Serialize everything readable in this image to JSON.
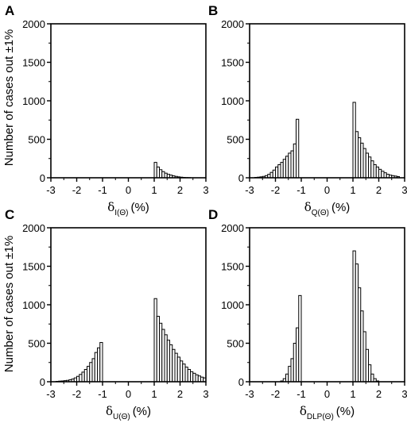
{
  "ylabel": "Number of cases out ±1%",
  "chart_data": [
    {
      "type": "bar",
      "panel_label": "A",
      "xlabel": {
        "symbol": "δ",
        "subscript": "I(Θ)",
        "unit": "(%)"
      },
      "xlim": [
        -3,
        3
      ],
      "ylim": [
        0,
        2000
      ],
      "xticks": [
        -3,
        -2,
        -1,
        0,
        1,
        2,
        3
      ],
      "yticks": [
        0,
        500,
        1000,
        1500,
        2000
      ],
      "bin_width": 0.1,
      "bins": [
        {
          "x": 1.0,
          "y": 200
        },
        {
          "x": 1.1,
          "y": 140
        },
        {
          "x": 1.2,
          "y": 105
        },
        {
          "x": 1.3,
          "y": 80
        },
        {
          "x": 1.4,
          "y": 60
        },
        {
          "x": 1.5,
          "y": 45
        },
        {
          "x": 1.6,
          "y": 35
        },
        {
          "x": 1.7,
          "y": 25
        },
        {
          "x": 1.8,
          "y": 18
        },
        {
          "x": 1.9,
          "y": 12
        },
        {
          "x": 2.0,
          "y": 8
        },
        {
          "x": 2.1,
          "y": 5
        },
        {
          "x": 2.2,
          "y": 3
        },
        {
          "x": 2.3,
          "y": 2
        }
      ]
    },
    {
      "type": "bar",
      "panel_label": "B",
      "xlabel": {
        "symbol": "δ",
        "subscript": "Q(Θ)",
        "unit": "(%)"
      },
      "xlim": [
        -3,
        3
      ],
      "ylim": [
        0,
        2000
      ],
      "xticks": [
        -3,
        -2,
        -1,
        0,
        1,
        2,
        3
      ],
      "yticks": [
        0,
        500,
        1000,
        1500,
        2000
      ],
      "bin_width": 0.1,
      "bins": [
        {
          "x": -2.8,
          "y": 5
        },
        {
          "x": -2.7,
          "y": 8
        },
        {
          "x": -2.6,
          "y": 12
        },
        {
          "x": -2.5,
          "y": 18
        },
        {
          "x": -2.4,
          "y": 28
        },
        {
          "x": -2.3,
          "y": 45
        },
        {
          "x": -2.2,
          "y": 70
        },
        {
          "x": -2.1,
          "y": 100
        },
        {
          "x": -2.0,
          "y": 140
        },
        {
          "x": -1.9,
          "y": 170
        },
        {
          "x": -1.8,
          "y": 200
        },
        {
          "x": -1.7,
          "y": 240
        },
        {
          "x": -1.6,
          "y": 280
        },
        {
          "x": -1.5,
          "y": 320
        },
        {
          "x": -1.4,
          "y": 350
        },
        {
          "x": -1.3,
          "y": 440
        },
        {
          "x": -1.2,
          "y": 760
        },
        {
          "x": 1.0,
          "y": 980
        },
        {
          "x": 1.1,
          "y": 600
        },
        {
          "x": 1.2,
          "y": 520
        },
        {
          "x": 1.3,
          "y": 450
        },
        {
          "x": 1.4,
          "y": 380
        },
        {
          "x": 1.5,
          "y": 320
        },
        {
          "x": 1.6,
          "y": 270
        },
        {
          "x": 1.7,
          "y": 220
        },
        {
          "x": 1.8,
          "y": 170
        },
        {
          "x": 1.9,
          "y": 140
        },
        {
          "x": 2.0,
          "y": 110
        },
        {
          "x": 2.1,
          "y": 85
        },
        {
          "x": 2.2,
          "y": 65
        },
        {
          "x": 2.3,
          "y": 45
        },
        {
          "x": 2.4,
          "y": 35
        },
        {
          "x": 2.5,
          "y": 28
        },
        {
          "x": 2.6,
          "y": 22
        },
        {
          "x": 2.7,
          "y": 15
        }
      ]
    },
    {
      "type": "bar",
      "panel_label": "C",
      "xlabel": {
        "symbol": "δ",
        "subscript": "U(Θ)",
        "unit": "(%)"
      },
      "xlim": [
        -3,
        3
      ],
      "ylim": [
        0,
        2000
      ],
      "xticks": [
        -3,
        -2,
        -1,
        0,
        1,
        2,
        3
      ],
      "yticks": [
        0,
        500,
        1000,
        1500,
        2000
      ],
      "bin_width": 0.1,
      "bins": [
        {
          "x": -2.8,
          "y": 5
        },
        {
          "x": -2.7,
          "y": 8
        },
        {
          "x": -2.6,
          "y": 10
        },
        {
          "x": -2.5,
          "y": 14
        },
        {
          "x": -2.4,
          "y": 18
        },
        {
          "x": -2.3,
          "y": 25
        },
        {
          "x": -2.2,
          "y": 35
        },
        {
          "x": -2.1,
          "y": 50
        },
        {
          "x": -2.0,
          "y": 70
        },
        {
          "x": -1.9,
          "y": 95
        },
        {
          "x": -1.8,
          "y": 125
        },
        {
          "x": -1.7,
          "y": 160
        },
        {
          "x": -1.6,
          "y": 200
        },
        {
          "x": -1.5,
          "y": 250
        },
        {
          "x": -1.4,
          "y": 300
        },
        {
          "x": -1.3,
          "y": 380
        },
        {
          "x": -1.2,
          "y": 440
        },
        {
          "x": -1.1,
          "y": 510
        },
        {
          "x": 1.0,
          "y": 1080
        },
        {
          "x": 1.1,
          "y": 850
        },
        {
          "x": 1.2,
          "y": 760
        },
        {
          "x": 1.3,
          "y": 680
        },
        {
          "x": 1.4,
          "y": 610
        },
        {
          "x": 1.5,
          "y": 540
        },
        {
          "x": 1.6,
          "y": 480
        },
        {
          "x": 1.7,
          "y": 420
        },
        {
          "x": 1.8,
          "y": 370
        },
        {
          "x": 1.9,
          "y": 320
        },
        {
          "x": 2.0,
          "y": 270
        },
        {
          "x": 2.1,
          "y": 230
        },
        {
          "x": 2.2,
          "y": 190
        },
        {
          "x": 2.3,
          "y": 160
        },
        {
          "x": 2.4,
          "y": 130
        },
        {
          "x": 2.5,
          "y": 110
        },
        {
          "x": 2.6,
          "y": 90
        },
        {
          "x": 2.7,
          "y": 75
        },
        {
          "x": 2.8,
          "y": 60
        },
        {
          "x": 2.9,
          "y": 50
        }
      ]
    },
    {
      "type": "bar",
      "panel_label": "D",
      "xlabel": {
        "symbol": "δ",
        "subscript": "DLP(Θ)",
        "unit": "(%)"
      },
      "xlim": [
        -3,
        3
      ],
      "ylim": [
        0,
        2000
      ],
      "xticks": [
        -3,
        -2,
        -1,
        0,
        1,
        2,
        3
      ],
      "yticks": [
        0,
        500,
        1000,
        1500,
        2000
      ],
      "bin_width": 0.1,
      "bins": [
        {
          "x": -1.8,
          "y": 10
        },
        {
          "x": -1.7,
          "y": 40
        },
        {
          "x": -1.6,
          "y": 100
        },
        {
          "x": -1.5,
          "y": 200
        },
        {
          "x": -1.4,
          "y": 300
        },
        {
          "x": -1.3,
          "y": 500
        },
        {
          "x": -1.2,
          "y": 700
        },
        {
          "x": -1.1,
          "y": 1120
        },
        {
          "x": 1.0,
          "y": 1700
        },
        {
          "x": 1.1,
          "y": 1530
        },
        {
          "x": 1.2,
          "y": 1220
        },
        {
          "x": 1.3,
          "y": 920
        },
        {
          "x": 1.4,
          "y": 650
        },
        {
          "x": 1.5,
          "y": 420
        },
        {
          "x": 1.6,
          "y": 220
        },
        {
          "x": 1.7,
          "y": 100
        },
        {
          "x": 1.8,
          "y": 40
        },
        {
          "x": 1.9,
          "y": 10
        }
      ]
    }
  ]
}
